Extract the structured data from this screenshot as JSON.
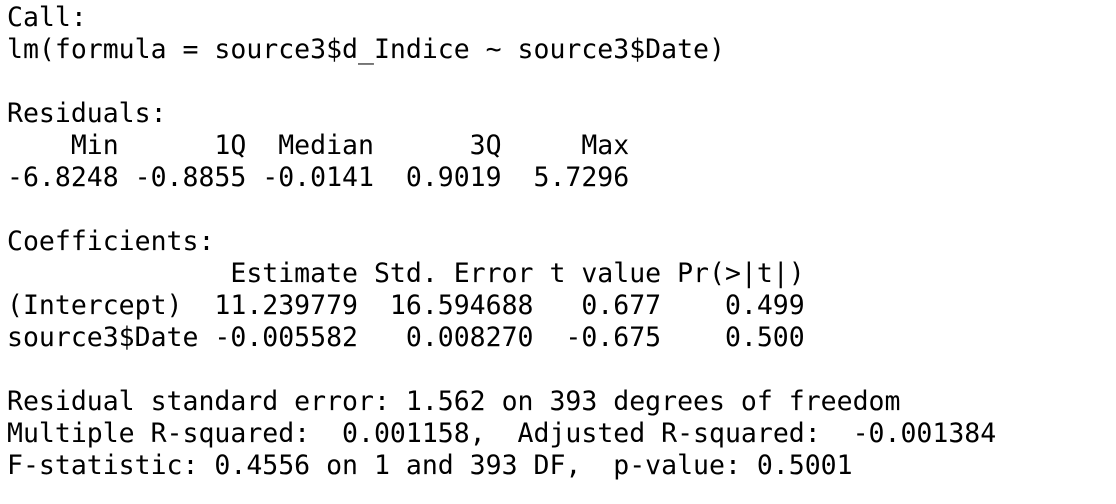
{
  "call": {
    "header": "Call:",
    "formula": "lm(formula = source3$d_Indice ~ source3$Date)"
  },
  "residuals": {
    "header": "Residuals:",
    "labels_row": "    Min      1Q  Median      3Q     Max ",
    "values_row": "-6.8248 -0.8855 -0.0141  0.9019  5.7296 "
  },
  "coefficients": {
    "header": "Coefficients:",
    "column_header_row": "              Estimate Std. Error t value Pr(>|t|)",
    "rows": [
      "(Intercept)  11.239779  16.594688   0.677    0.499",
      "source3$Date -0.005582   0.008270  -0.675    0.500"
    ]
  },
  "summary": {
    "residual_se": "Residual standard error: 1.562 on 393 degrees of freedom",
    "r_squared": "Multiple R-squared:  0.001158,\tAdjusted R-squared:  -0.001384 ",
    "f_statistic": "F-statistic: 0.4556 on 1 and 393 DF,  p-value: 0.5001"
  }
}
